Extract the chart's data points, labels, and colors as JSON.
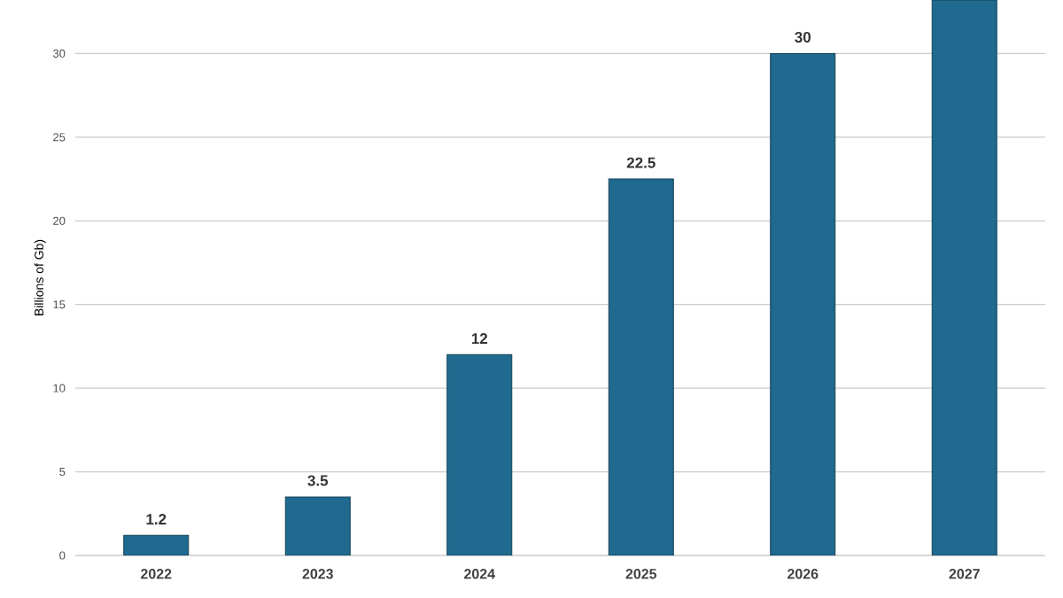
{
  "chart_data": {
    "type": "bar",
    "ylabel": "Billions of Gb)",
    "categories": [
      "2022",
      "2023",
      "2024",
      "2025",
      "2026",
      "2027"
    ],
    "values": [
      1.2,
      3.5,
      12,
      22.5,
      30,
      33.2
    ],
    "value_labels": [
      "1.2",
      "3.5",
      "12",
      "22.5",
      "30",
      null
    ],
    "color": "#1f6a8e",
    "ylim": [
      0,
      33.2
    ],
    "yticks": [
      0,
      5,
      10,
      15,
      20,
      25,
      30
    ],
    "grid": "y"
  }
}
